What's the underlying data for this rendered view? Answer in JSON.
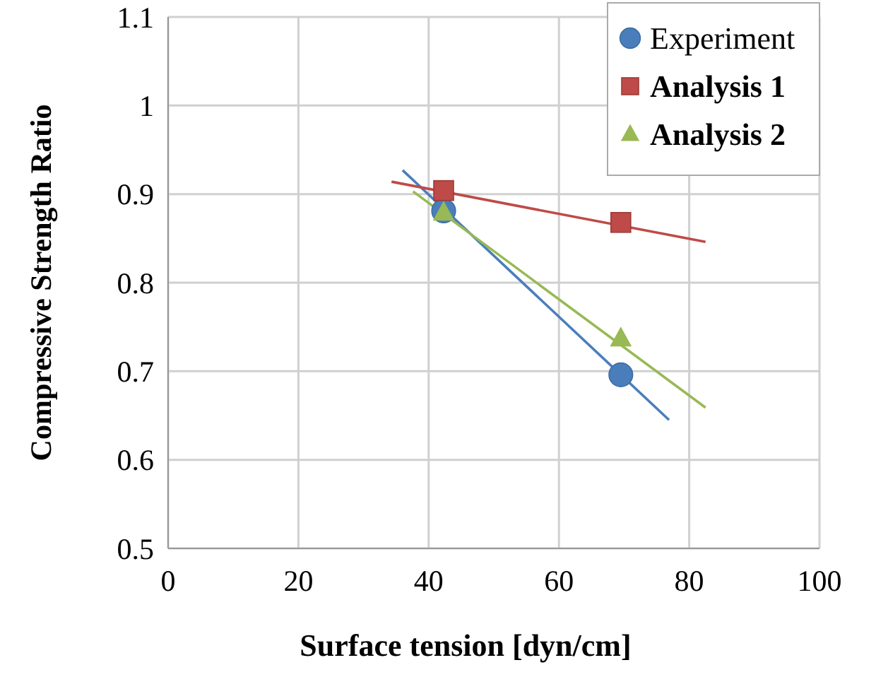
{
  "chart_data": {
    "type": "scatter",
    "xlabel": "Surface tension [dyn/cm]",
    "ylabel": "Compressive Strength Ratio",
    "xlim": [
      0,
      100
    ],
    "xticks": [
      0,
      20,
      40,
      60,
      80,
      100
    ],
    "ylim": [
      0.5,
      1.1
    ],
    "yticks": [
      0.5,
      0.6,
      0.7,
      0.8,
      0.9,
      1,
      1.1
    ],
    "grid": true,
    "legend": "top right",
    "series": [
      {
        "name": "Experiment",
        "type": "scatter",
        "marker": "circle",
        "color": "#4a7ebb",
        "x": [
          42.3,
          69.5
        ],
        "values": [
          0.881,
          0.696
        ]
      },
      {
        "name": "Analysis 1",
        "type": "scatter",
        "marker": "square",
        "color": "#be4b48",
        "x": [
          42.3,
          69.5
        ],
        "values": [
          0.904,
          0.868
        ]
      },
      {
        "name": "Analysis 2",
        "type": "scatter",
        "marker": "triangle",
        "color": "#98b954",
        "x": [
          42.3,
          69.5
        ],
        "values": [
          0.879,
          0.737
        ]
      },
      {
        "type": "line",
        "color": "#4a7ebb",
        "x": [
          36,
          76.9
        ],
        "values": [
          0.927,
          0.645
        ]
      },
      {
        "type": "line",
        "color": "#be4b48",
        "x": [
          34.3,
          82.5
        ],
        "values": [
          0.914,
          0.846
        ]
      },
      {
        "type": "line",
        "color": "#98b954",
        "x": [
          37.6,
          82.5
        ],
        "values": [
          0.903,
          0.659
        ]
      }
    ]
  }
}
